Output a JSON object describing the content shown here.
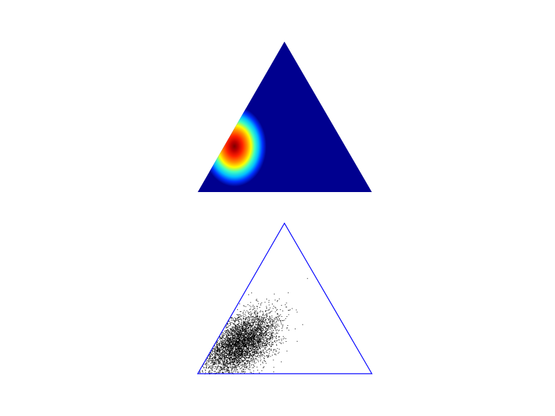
{
  "chart_data": [
    {
      "type": "heatmap",
      "subtype": "ternary-density",
      "colormap": "jet",
      "colormap_stops": [
        "#00008f",
        "#0000ff",
        "#00ffff",
        "#ffff00",
        "#ff0000",
        "#800000"
      ],
      "peak": {
        "a": 0.7,
        "b": 0.14,
        "c": 0.16
      },
      "background_color": "#00008f",
      "grid": false,
      "axes_visible": false
    },
    {
      "type": "scatter",
      "subtype": "ternary-samples",
      "point_color": "#000000",
      "boundary_color": "#0000ff",
      "sample_count": 5000,
      "mean": {
        "a": 0.69,
        "b": 0.14,
        "c": 0.17
      },
      "grid": false,
      "axes_visible": false
    }
  ]
}
